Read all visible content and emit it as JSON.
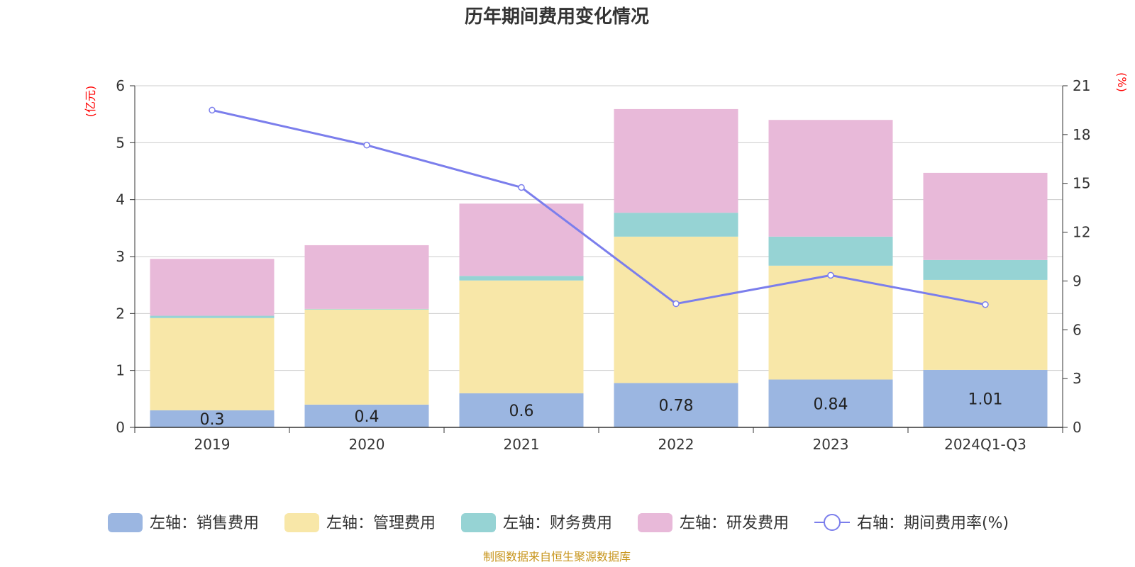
{
  "chart_data": {
    "type": "bar",
    "title": "历年期间费用变化情况",
    "categories": [
      "2019",
      "2020",
      "2021",
      "2022",
      "2023",
      "2024Q1-Q3"
    ],
    "left_axis": {
      "unit_label": "(亿元)",
      "ylim": [
        0,
        6
      ],
      "ticks": [
        "0",
        "1",
        "2",
        "3",
        "4",
        "5",
        "6"
      ]
    },
    "right_axis": {
      "unit_label": "(%)",
      "ylim": [
        0,
        21
      ],
      "ticks": [
        "0",
        "3",
        "6",
        "9",
        "12",
        "15",
        "18",
        "21"
      ]
    },
    "series": [
      {
        "name": "左轴：销售费用",
        "type": "bar",
        "axis": "left",
        "color": "#9bb6e1",
        "values": [
          0.3,
          0.4,
          0.6,
          0.78,
          0.84,
          1.01
        ],
        "labels": [
          "0.3",
          "0.4",
          "0.6",
          "0.78",
          "0.84",
          "1.01"
        ]
      },
      {
        "name": "左轴：管理费用",
        "type": "bar",
        "axis": "left",
        "color": "#f8e7a8",
        "values": [
          1.62,
          1.67,
          1.98,
          2.57,
          2.0,
          1.58
        ]
      },
      {
        "name": "左轴：财务费用",
        "type": "bar",
        "axis": "left",
        "color": "#96d3d4",
        "values": [
          0.04,
          0.01,
          0.08,
          0.42,
          0.51,
          0.35
        ]
      },
      {
        "name": "左轴：研发费用",
        "type": "bar",
        "axis": "left",
        "color": "#e8b9d9",
        "values": [
          1.0,
          1.12,
          1.27,
          1.82,
          2.05,
          1.53
        ]
      },
      {
        "name": "右轴：期间费用率(%)",
        "type": "line",
        "axis": "right",
        "color": "#7b7eec",
        "values": [
          19.5,
          17.35,
          14.75,
          7.6,
          9.35,
          7.55
        ]
      }
    ],
    "grid": true,
    "legend_position": "bottom"
  },
  "footer": {
    "source": "制图数据来自恒生聚源数据库"
  }
}
